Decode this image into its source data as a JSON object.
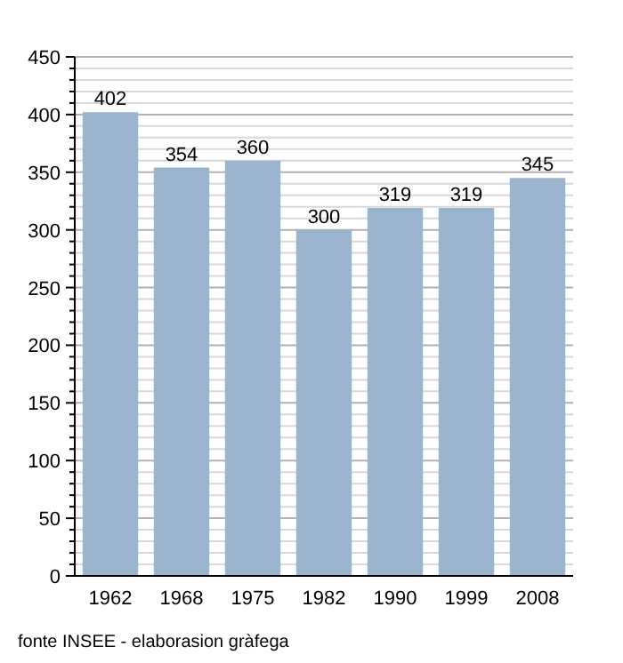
{
  "chart_data": {
    "type": "bar",
    "categories": [
      "1962",
      "1968",
      "1975",
      "1982",
      "1990",
      "1999",
      "2008"
    ],
    "values": [
      402,
      354,
      360,
      300,
      319,
      319,
      345
    ],
    "color": "#9bb4ce",
    "data_labels": true,
    "grid": "y",
    "ylim": [
      0,
      450
    ],
    "yticks": [
      0,
      {
        "value": 10,
        "label": null
      },
      {
        "value": 20,
        "label": null
      },
      {
        "value": 30,
        "label": null
      },
      {
        "value": 40,
        "label": null
      },
      50,
      {
        "value": 60,
        "label": null
      },
      {
        "value": 70,
        "label": null
      },
      {
        "value": 80,
        "label": null
      },
      {
        "value": 90,
        "label": null
      },
      100,
      {
        "value": 110,
        "label": null
      },
      {
        "value": 120,
        "label": null
      },
      {
        "value": 130,
        "label": null
      },
      {
        "value": 140,
        "label": null
      },
      150,
      {
        "value": 160,
        "label": null
      },
      {
        "value": 170,
        "label": null
      },
      {
        "value": 180,
        "label": null
      },
      {
        "value": 190,
        "label": null
      },
      200,
      {
        "value": 210,
        "label": null
      },
      {
        "value": 220,
        "label": null
      },
      {
        "value": 230,
        "label": null
      },
      {
        "value": 240,
        "label": null
      },
      250,
      {
        "value": 260,
        "label": null
      },
      {
        "value": 270,
        "label": null
      },
      {
        "value": 280,
        "label": null
      },
      {
        "value": 290,
        "label": null
      },
      300,
      {
        "value": 310,
        "label": null
      },
      {
        "value": 320,
        "label": null
      },
      {
        "value": 330,
        "label": null
      },
      {
        "value": 340,
        "label": null
      },
      350,
      {
        "value": 360,
        "label": null
      },
      {
        "value": 370,
        "label": null
      },
      {
        "value": 380,
        "label": null
      },
      {
        "value": 390,
        "label": null
      },
      400,
      {
        "value": 410,
        "label": null
      },
      {
        "value": 420,
        "label": null
      },
      {
        "value": 430,
        "label": null
      },
      {
        "value": 440,
        "label": null
      },
      450
    ],
    "annotations": [
      "fonte INSEE - elaborasion gràfega"
    ]
  }
}
